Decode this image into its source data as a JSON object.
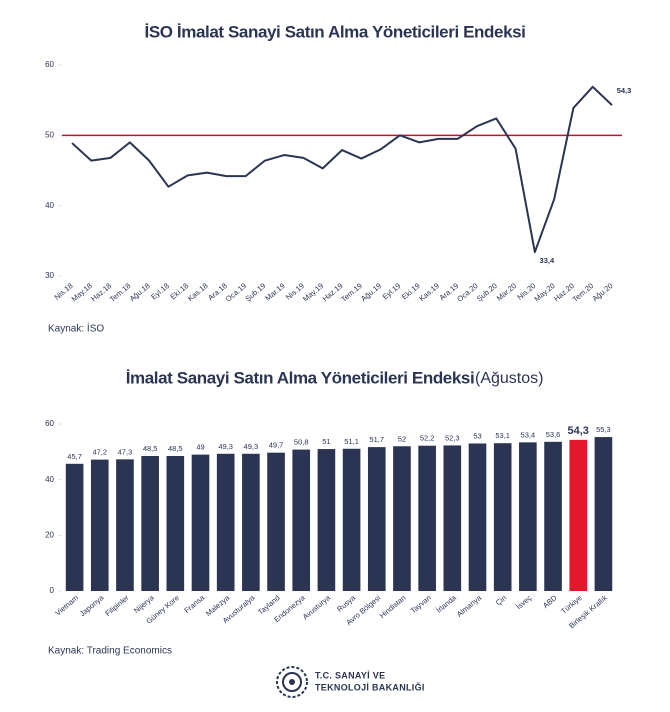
{
  "chart_data": [
    {
      "type": "line",
      "title": "İSO İmalat Sanayi Satın Alma Yöneticileri Endeksi",
      "categories": [
        "Nis.18",
        "May.18",
        "Haz.18",
        "Tem.18",
        "Ağu.18",
        "Eyl.18",
        "Eki.18",
        "Kas.18",
        "Ara.18",
        "Oca.19",
        "Şub.19",
        "Mar.19",
        "Nis.19",
        "May.19",
        "Haz.19",
        "Tem.19",
        "Ağu.19",
        "Eyl.19",
        "Eki.19",
        "Kas.19",
        "Ara.19",
        "Oca.20",
        "Şub.20",
        "Mar.20",
        "Nis.20",
        "May.20",
        "Haz.20",
        "Tem.20",
        "Ağu.20"
      ],
      "values": [
        48.9,
        46.4,
        46.8,
        49.0,
        46.4,
        42.7,
        44.3,
        44.7,
        44.2,
        44.2,
        46.4,
        47.2,
        46.8,
        45.3,
        47.9,
        46.7,
        48.0,
        50.0,
        49.0,
        49.5,
        49.5,
        51.3,
        52.4,
        48.1,
        33.4,
        40.9,
        53.9,
        56.9,
        54.3
      ],
      "value_labels": [
        null,
        null,
        null,
        null,
        null,
        null,
        null,
        null,
        null,
        null,
        null,
        null,
        null,
        null,
        null,
        null,
        null,
        null,
        null,
        null,
        null,
        null,
        null,
        null,
        "33,4",
        null,
        null,
        null,
        "54,3"
      ],
      "color": "#2b3553",
      "ylim": [
        30,
        60
      ],
      "yticks": [
        30,
        40,
        50,
        60
      ],
      "grid": false,
      "reference_line": {
        "value": 50,
        "color": "#c8102e"
      },
      "source": "Kaynak: İSO"
    },
    {
      "type": "bar",
      "title": "İmalat Sanayi Satın Alma Yöneticileri Endeksi",
      "subtitle": "(Ağustos)",
      "categories": [
        "Vietnam",
        "Japonya",
        "Filipinler",
        "Nijerya",
        "Güney Kore",
        "Fransa",
        "Malezya",
        "Avusturalya",
        "Tayland",
        "Endonezya",
        "Avusturya",
        "Rusya",
        "Avro Bölgesi",
        "Hindistan",
        "Tayvan",
        "İrlanda",
        "Almanya",
        "Çin",
        "İsveç",
        "ABD",
        "Türkiye",
        "Birleşik Krallık"
      ],
      "values": [
        45.7,
        47.2,
        47.3,
        48.5,
        48.5,
        49,
        49.3,
        49.3,
        49.7,
        50.8,
        51,
        51.1,
        51.7,
        52,
        52.2,
        52.3,
        53,
        53.1,
        53.4,
        53.6,
        54.3,
        55.3
      ],
      "value_labels": [
        "45,7",
        "47,2",
        "47,3",
        "48,5",
        "48,5",
        "49",
        "49,3",
        "49,3",
        "49,7",
        "50,8",
        "51",
        "51,1",
        "51,7",
        "52",
        "52,2",
        "52,3",
        "53",
        "53,1",
        "53,4",
        "53,6",
        "54,3",
        "55,3"
      ],
      "colors": [
        "#2b3553",
        "#2b3553",
        "#2b3553",
        "#2b3553",
        "#2b3553",
        "#2b3553",
        "#2b3553",
        "#2b3553",
        "#2b3553",
        "#2b3553",
        "#2b3553",
        "#2b3553",
        "#2b3553",
        "#2b3553",
        "#2b3553",
        "#2b3553",
        "#2b3553",
        "#2b3553",
        "#2b3553",
        "#2b3553",
        "#e3182d",
        "#2b3553"
      ],
      "ylim": [
        0,
        60
      ],
      "yticks": [
        0,
        20,
        40,
        60
      ],
      "grid": false,
      "source": "Kaynak: Trading Economics"
    }
  ],
  "footer": {
    "line1": "T.C. SANAYİ VE",
    "line2": "TEKNOLOJİ BAKANLIĞI"
  }
}
